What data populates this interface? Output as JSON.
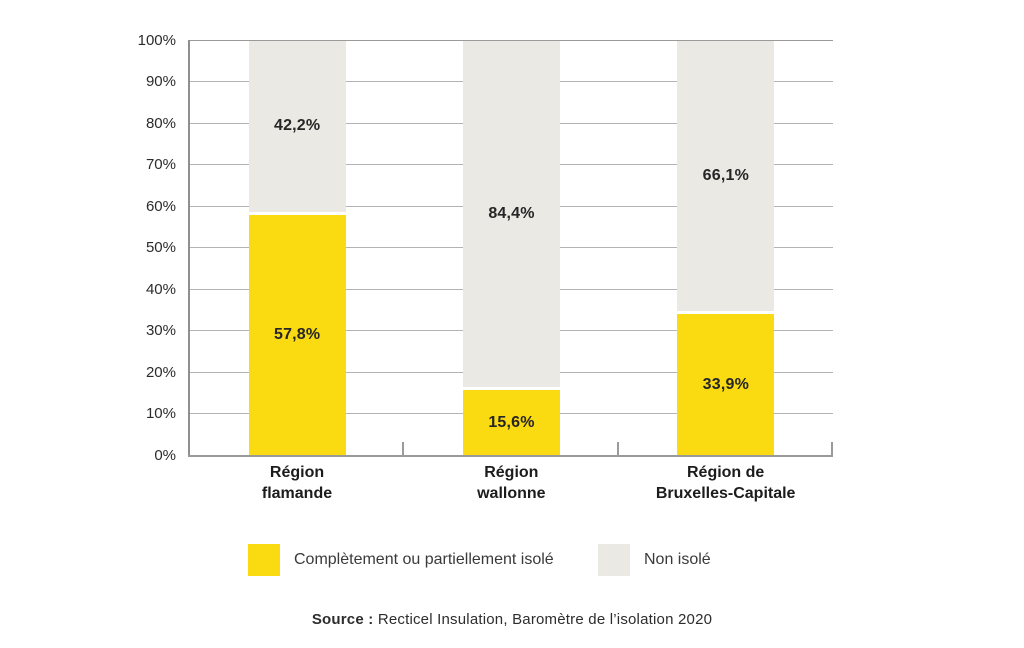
{
  "colors": {
    "isolated_yellow": "#fada10",
    "non_isolated_gray": "#ebe9e4",
    "grid": "#b3b3b3",
    "axis": "#9a9a9a",
    "value_label_text": "#262626",
    "category_text": "#1c1c1c",
    "tick_text": "#2b2b2b",
    "legend_text": "#3a3a3a",
    "source_text": "#2d2d2d",
    "background": "#ffffff"
  },
  "chart_data": {
    "type": "bar",
    "stacked": true,
    "title": "",
    "xlabel": "",
    "ylabel": "",
    "categories": [
      "Région flamande",
      "Région wallonne",
      "Région de Bruxelles-Capitale"
    ],
    "category_lines": [
      [
        "Région",
        "flamande"
      ],
      [
        "Région",
        "wallonne"
      ],
      [
        "Région de",
        "Bruxelles-Capitale"
      ]
    ],
    "series": [
      {
        "name": "Complètement ou partiellement isolé",
        "values": [
          57.8,
          15.6,
          33.9
        ],
        "value_labels": [
          "57,8%",
          "15,6%",
          "33,9%"
        ],
        "color": "#fada10",
        "position": "bottom"
      },
      {
        "name": "Non isolé",
        "values": [
          42.2,
          84.4,
          66.1
        ],
        "value_labels": [
          "42,2%",
          "84,4%",
          "66,1%"
        ],
        "color": "#ebe9e4",
        "position": "top"
      }
    ],
    "ylim": [
      0,
      100
    ],
    "y_tick_labels": [
      "0%",
      "10%",
      "20%",
      "30%",
      "40%",
      "50%",
      "60%",
      "70%",
      "80%",
      "90%",
      "100%"
    ],
    "grid": true,
    "legend_position": "bottom-center"
  },
  "legend": {
    "items": [
      {
        "label": "Complètement ou partiellement isolé",
        "color": "#fada10"
      },
      {
        "label": "Non isolé",
        "color": "#ebe9e4"
      }
    ]
  },
  "source": {
    "prefix": "Source :",
    "text": "Recticel Insulation, Baromètre de l’isolation 2020"
  }
}
